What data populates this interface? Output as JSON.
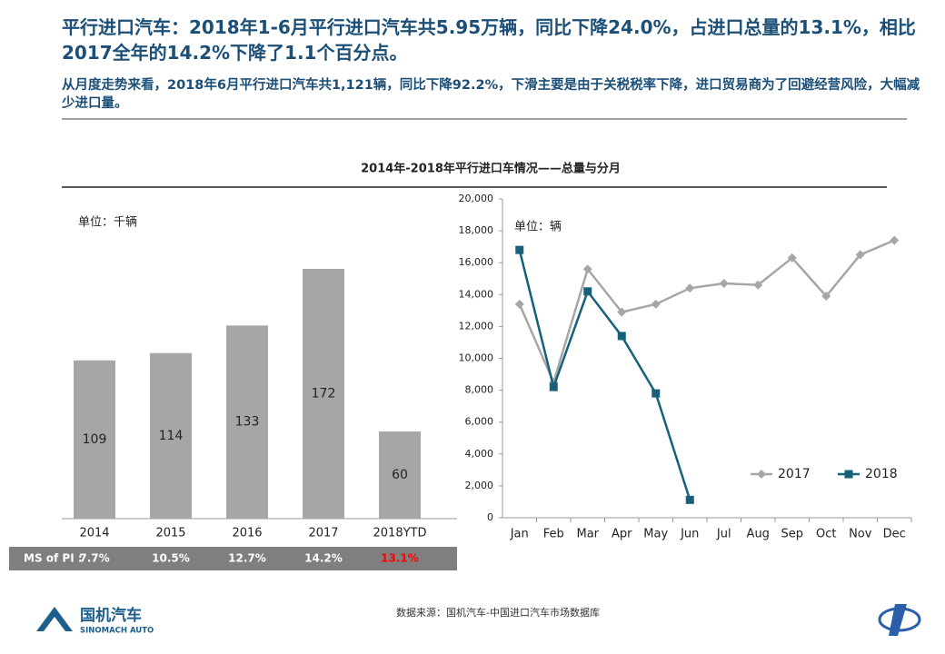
{
  "header": {
    "title": "平行进口汽车：2018年1-6月平行进口汽车共5.95万辆，同比下降24.0%，占进口总量的13.1%，相比2017全年的14.2%下降了1.1个百分点。",
    "subtitle": "从月度走势来看，2018年6月平行进口汽车共1,121辆，同比下降92.2%，下滑主要是由于关税税率下降，进口贸易商为了回避经营风险，大幅减少进口量。"
  },
  "chart_title": "2014年-2018年平行进口车情况——总量与分月",
  "chart_data": [
    {
      "type": "bar",
      "unit_note": "单位：千辆",
      "categories": [
        "2014",
        "2015",
        "2016",
        "2017",
        "2018YTD"
      ],
      "values": [
        109,
        114,
        133,
        172,
        60
      ],
      "color": "#a6a6a6"
    },
    {
      "type": "line",
      "unit_note": "单位：辆",
      "categories": [
        "Jan",
        "Feb",
        "Mar",
        "Apr",
        "May",
        "Jun",
        "Jul",
        "Aug",
        "Sep",
        "Oct",
        "Nov",
        "Dec"
      ],
      "series": [
        {
          "name": "2017",
          "color": "#a6a6a6",
          "marker": "diamond",
          "values": [
            13400,
            8500,
            15600,
            12900,
            13400,
            14400,
            14700,
            14600,
            16300,
            13900,
            16500,
            17400
          ]
        },
        {
          "name": "2018",
          "color": "#17607a",
          "marker": "square",
          "values": [
            16800,
            8200,
            14200,
            11400,
            7800,
            1121,
            null,
            null,
            null,
            null,
            null,
            null
          ]
        }
      ],
      "ylim": [
        0,
        20000
      ],
      "yticks": [
        0,
        {
          "value": 2000,
          "label": "2,000"
        },
        {
          "value": 4000,
          "label": "4,000"
        },
        {
          "value": 6000,
          "label": "6,000"
        },
        {
          "value": 8000,
          "label": "8,000"
        },
        {
          "value": 10000,
          "label": "10,000"
        },
        {
          "value": 12000,
          "label": "12,000"
        },
        {
          "value": 14000,
          "label": "14,000"
        },
        {
          "value": 16000,
          "label": "16,000"
        },
        {
          "value": 18000,
          "label": "18,000"
        },
        {
          "value": 20000,
          "label": "20,000"
        }
      ],
      "legend": "lower right"
    }
  ],
  "ms_row": {
    "label": "MS of PI :",
    "values": [
      "7.7%",
      "10.5%",
      "12.7%",
      "14.2%",
      "13.1%"
    ],
    "highlight_index": 4,
    "highlight_color": "#ff0000"
  },
  "footer": {
    "source": "数据来源：国机汽车-中国进口汽车市场数据库",
    "logo": "国机汽车",
    "logo_en": "SINOMACH AUTO"
  }
}
